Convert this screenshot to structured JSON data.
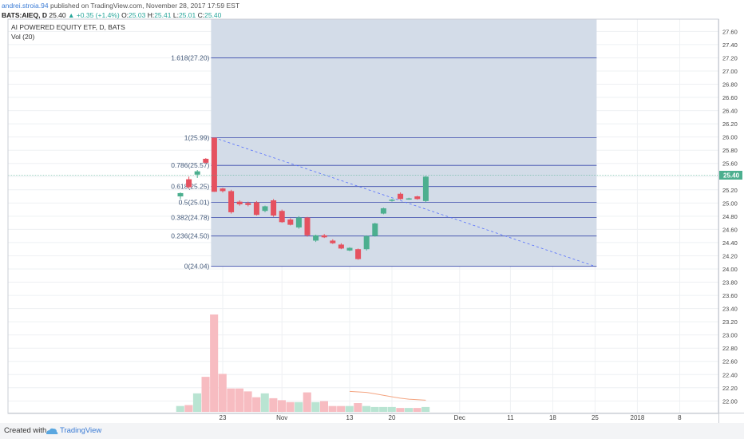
{
  "header": {
    "author": "andrei.stroia.94",
    "published": "published on TradingView.com, November 28, 2017 17:59 EST",
    "symbol": "BATS:AIEQ, D",
    "last": "25.40",
    "change": "+0.35 (+1.4%)",
    "o_label": "O:",
    "o": "25.03",
    "h_label": "H:",
    "h": "25.41",
    "l_label": "L:",
    "l": "25.01",
    "c_label": "C:",
    "c": "25.40"
  },
  "footer": {
    "created_with": "Created with",
    "brand": "TradingView"
  },
  "colors": {
    "up": "#4caf8f",
    "down": "#e5515f",
    "vol_up": "#b9e4d2",
    "vol_down": "#f7bcc1",
    "fib_shade": "#d1dae7",
    "fib_line": "#3949ab",
    "grid": "#eef0f3",
    "price_tag": "#4caf8f",
    "vol_ma": "#f4a582",
    "trend": "#536dfe"
  },
  "chart_data": {
    "type": "candlestick",
    "title": "AI POWERED EQUITY ETF, D, BATS",
    "indicator": "Vol (20)",
    "y_ticks": [
      "27.60",
      "27.40",
      "27.20",
      "27.00",
      "26.80",
      "26.60",
      "26.40",
      "26.20",
      "26.00",
      "25.80",
      "25.60",
      "25.40",
      "25.20",
      "25.00",
      "24.80",
      "24.60",
      "24.40",
      "24.20",
      "24.00",
      "23.80",
      "23.60",
      "23.40",
      "23.20",
      "23.00",
      "22.80",
      "22.60",
      "22.40",
      "22.20",
      "22.00"
    ],
    "x_ticks": [
      {
        "label": "23",
        "bar": 5
      },
      {
        "label": "Nov",
        "bar": 12
      },
      {
        "label": "13",
        "bar": 20
      },
      {
        "label": "20",
        "bar": 25
      },
      {
        "label": "Dec",
        "bar": 33
      },
      {
        "label": "11",
        "bar": 39
      },
      {
        "label": "18",
        "bar": 44
      },
      {
        "label": "25",
        "bar": 49
      },
      {
        "label": "2018",
        "bar": 54
      },
      {
        "label": "8",
        "bar": 59
      }
    ],
    "last_price_label": "25.40",
    "last_price": 25.4,
    "candles": [
      {
        "o": 25.1,
        "h": 25.16,
        "l": 25.06,
        "c": 25.15
      },
      {
        "o": 25.36,
        "h": 25.4,
        "l": 25.22,
        "c": 25.24
      },
      {
        "o": 25.43,
        "h": 25.5,
        "l": 25.38,
        "c": 25.48
      },
      {
        "o": 25.67,
        "h": 25.68,
        "l": 25.6,
        "c": 25.61
      },
      {
        "o": 25.99,
        "h": 25.99,
        "l": 25.17,
        "c": 25.17
      },
      {
        "o": 25.22,
        "h": 25.23,
        "l": 25.16,
        "c": 25.18
      },
      {
        "o": 25.18,
        "h": 25.2,
        "l": 24.84,
        "c": 24.86
      },
      {
        "o": 25.02,
        "h": 25.04,
        "l": 24.96,
        "c": 24.98
      },
      {
        "o": 25.0,
        "h": 25.02,
        "l": 24.95,
        "c": 24.97
      },
      {
        "o": 25.01,
        "h": 25.03,
        "l": 24.81,
        "c": 24.82
      },
      {
        "o": 24.88,
        "h": 24.96,
        "l": 24.86,
        "c": 24.95
      },
      {
        "o": 25.04,
        "h": 25.06,
        "l": 24.79,
        "c": 24.81
      },
      {
        "o": 24.88,
        "h": 24.9,
        "l": 24.7,
        "c": 24.71
      },
      {
        "o": 24.75,
        "h": 24.77,
        "l": 24.66,
        "c": 24.67
      },
      {
        "o": 24.63,
        "h": 24.8,
        "l": 24.61,
        "c": 24.78
      },
      {
        "o": 24.78,
        "h": 24.79,
        "l": 24.49,
        "c": 24.51
      },
      {
        "o": 24.43,
        "h": 24.52,
        "l": 24.41,
        "c": 24.51
      },
      {
        "o": 24.51,
        "h": 24.53,
        "l": 24.47,
        "c": 24.48
      },
      {
        "o": 24.43,
        "h": 24.45,
        "l": 24.38,
        "c": 24.39
      },
      {
        "o": 24.37,
        "h": 24.39,
        "l": 24.3,
        "c": 24.31
      },
      {
        "o": 24.28,
        "h": 24.33,
        "l": 24.27,
        "c": 24.32
      },
      {
        "o": 24.3,
        "h": 24.31,
        "l": 24.14,
        "c": 24.15
      },
      {
        "o": 24.3,
        "h": 24.51,
        "l": 24.28,
        "c": 24.5
      },
      {
        "o": 24.5,
        "h": 24.7,
        "l": 24.49,
        "c": 24.69
      },
      {
        "o": 24.84,
        "h": 24.93,
        "l": 24.83,
        "c": 24.92
      },
      {
        "o": 25.04,
        "h": 25.06,
        "l": 25.02,
        "c": 25.05
      },
      {
        "o": 25.14,
        "h": 25.16,
        "l": 25.05,
        "c": 25.06
      },
      {
        "o": 25.06,
        "h": 25.08,
        "l": 25.05,
        "c": 25.07
      },
      {
        "o": 25.1,
        "h": 25.11,
        "l": 25.05,
        "c": 25.06
      },
      {
        "o": 25.03,
        "h": 25.41,
        "l": 25.01,
        "c": 25.4
      }
    ],
    "volume": [
      0.06,
      0.07,
      0.19,
      0.36,
      1.0,
      0.39,
      0.24,
      0.24,
      0.21,
      0.15,
      0.19,
      0.14,
      0.12,
      0.1,
      0.1,
      0.2,
      0.1,
      0.11,
      0.06,
      0.06,
      0.06,
      0.09,
      0.06,
      0.05,
      0.05,
      0.05,
      0.04,
      0.04,
      0.04,
      0.05
    ],
    "volume_ma": [
      null,
      null,
      null,
      null,
      null,
      null,
      null,
      null,
      null,
      null,
      null,
      null,
      null,
      null,
      null,
      null,
      null,
      null,
      null,
      null,
      0.21,
      0.205,
      0.2,
      0.185,
      0.17,
      0.155,
      0.14,
      0.13,
      0.125,
      0.12
    ],
    "fibonacci": {
      "start_bar": 4,
      "end_bar": 49,
      "high": 25.99,
      "low": 24.04,
      "levels": [
        {
          "label": "1.618(27.20)",
          "value": 27.2
        },
        {
          "label": "1(25.99)",
          "value": 25.99
        },
        {
          "label": "0.786(25.57)",
          "value": 25.57
        },
        {
          "label": "0.618(25.25)",
          "value": 25.25
        },
        {
          "label": "0.5(25.01)",
          "value": 25.01
        },
        {
          "label": "0.382(24.78)",
          "value": 24.78
        },
        {
          "label": "0.236(24.50)",
          "value": 24.5
        },
        {
          "label": "0(24.04)",
          "value": 24.04
        }
      ],
      "trend_line": {
        "from_bar": 4,
        "from_value": 25.99,
        "to_bar": 49,
        "to_value": 24.04
      }
    }
  }
}
